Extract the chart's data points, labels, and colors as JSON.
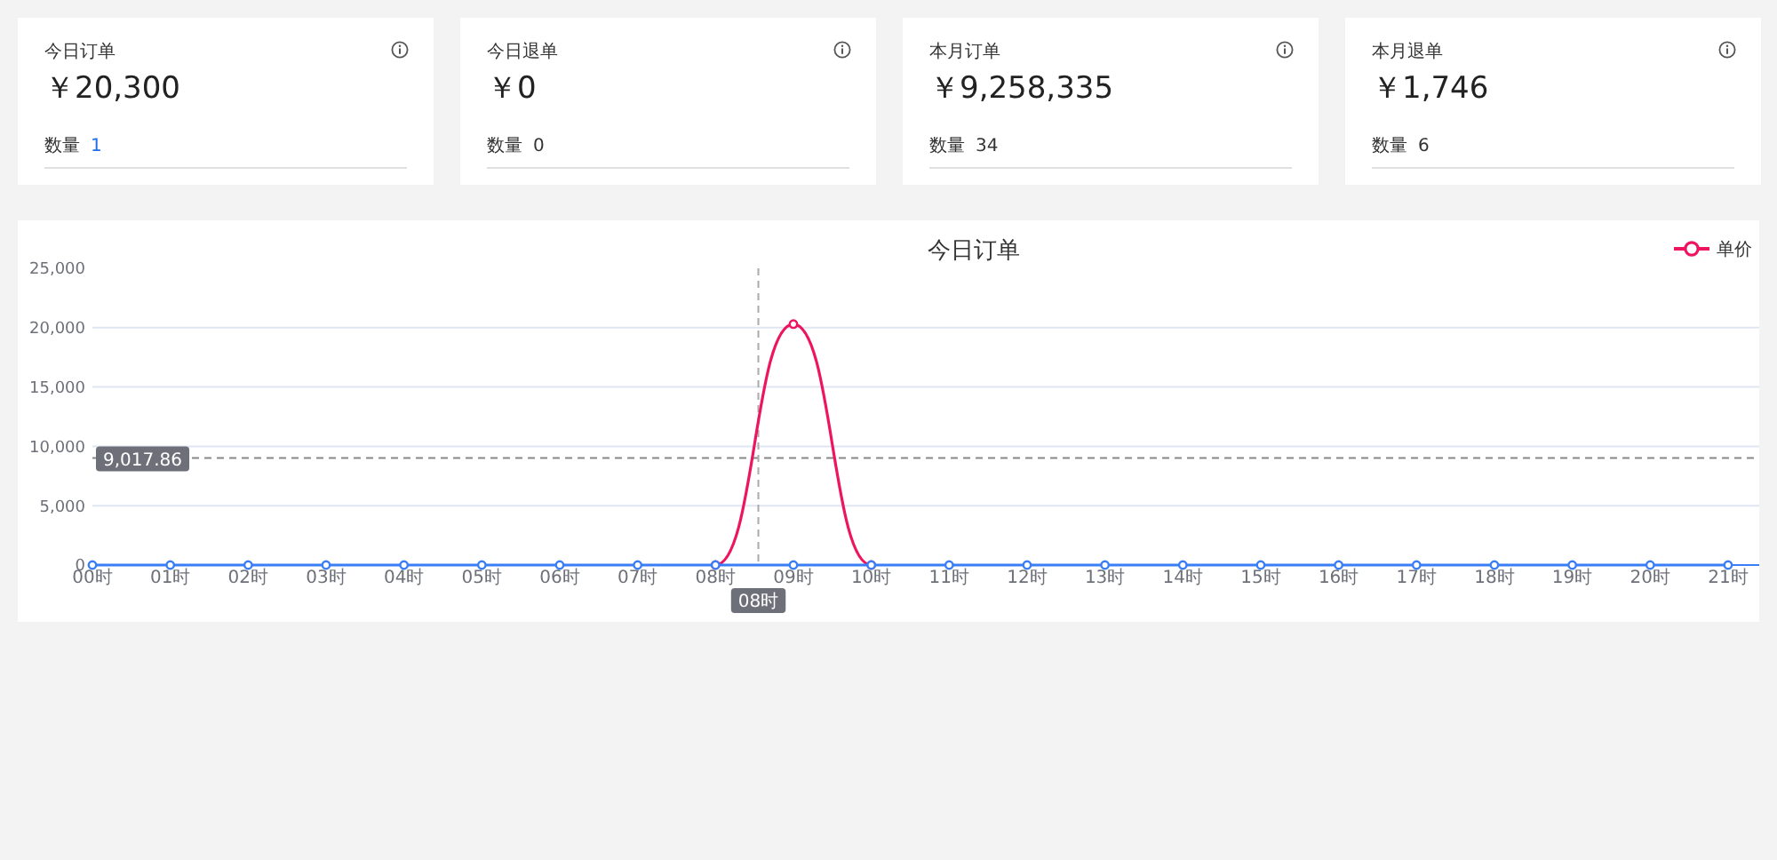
{
  "chart_data": [
    {
      "type": "other",
      "title": "今日订单",
      "annotations": [
        "￥20,300",
        "数量",
        "1"
      ]
    },
    {
      "type": "other",
      "title": "今日退单",
      "annotations": [
        "￥0",
        "数量",
        "0"
      ]
    },
    {
      "type": "other",
      "title": "本月订单",
      "annotations": [
        "￥9,258,335",
        "数量",
        "34"
      ]
    },
    {
      "type": "other",
      "title": "本月退单",
      "annotations": [
        "￥1,746",
        "数量",
        "6"
      ]
    },
    {
      "type": "line",
      "title": "今日订单",
      "x": [
        0,
        1,
        2,
        3,
        4,
        5,
        6,
        7,
        8,
        9,
        10,
        11,
        12,
        13,
        14,
        15,
        16,
        17,
        18,
        19,
        20,
        21
      ],
      "series": [
        {
          "name": "单价",
          "color": "#ee1560",
          "x": [
            8,
            9,
            10
          ],
          "values": [
            0,
            20300,
            0
          ]
        },
        {
          "color": "#3a7ef6",
          "values": [
            0,
            0,
            0,
            0,
            0,
            0,
            0,
            0,
            0,
            0,
            0,
            0,
            0,
            0,
            0,
            0,
            0,
            0,
            0,
            0,
            0,
            0
          ]
        }
      ],
      "xlim": [
        0,
        21.4
      ],
      "xticks": [
        {
          "value": 0,
          "label": "00时"
        },
        {
          "value": 1,
          "label": "01时"
        },
        {
          "value": 2,
          "label": "02时"
        },
        {
          "value": 3,
          "label": "03时"
        },
        {
          "value": 4,
          "label": "04时"
        },
        {
          "value": 5,
          "label": "05时"
        },
        {
          "value": 6,
          "label": "06时"
        },
        {
          "value": 7,
          "label": "07时"
        },
        {
          "value": 8,
          "label": "08时"
        },
        {
          "value": 9,
          "label": "09时"
        },
        {
          "value": 10,
          "label": "10时"
        },
        {
          "value": 11,
          "label": "11时"
        },
        {
          "value": 12,
          "label": "12时"
        },
        {
          "value": 13,
          "label": "13时"
        },
        {
          "value": 14,
          "label": "14时"
        },
        {
          "value": 15,
          "label": "15时"
        },
        {
          "value": 16,
          "label": "16时"
        },
        {
          "value": 17,
          "label": "17时"
        },
        {
          "value": 18,
          "label": "18时"
        },
        {
          "value": 19,
          "label": "19时"
        },
        {
          "value": 20,
          "label": "20时"
        },
        {
          "value": 21,
          "label": "21时"
        }
      ],
      "ylim": [
        0,
        25000
      ],
      "yticks": [
        0,
        {
          "value": 5000,
          "label": "5,000"
        },
        {
          "value": 10000,
          "label": "10,000"
        },
        {
          "value": 15000,
          "label": "15,000"
        },
        {
          "value": 20000,
          "label": "20,000"
        },
        {
          "value": 25000,
          "label": "25,000"
        }
      ],
      "grid": "y",
      "legend": "top right",
      "marker": "circle",
      "ref_lines": [
        {
          "axis": "y",
          "value": 9017.86,
          "label": "9,017.86",
          "color": "#888888",
          "line_style": "dashed"
        },
        {
          "axis": "x",
          "value": 8.55,
          "label": "08时",
          "color": "#aaaaaa",
          "line_style": "dashed"
        }
      ]
    }
  ]
}
